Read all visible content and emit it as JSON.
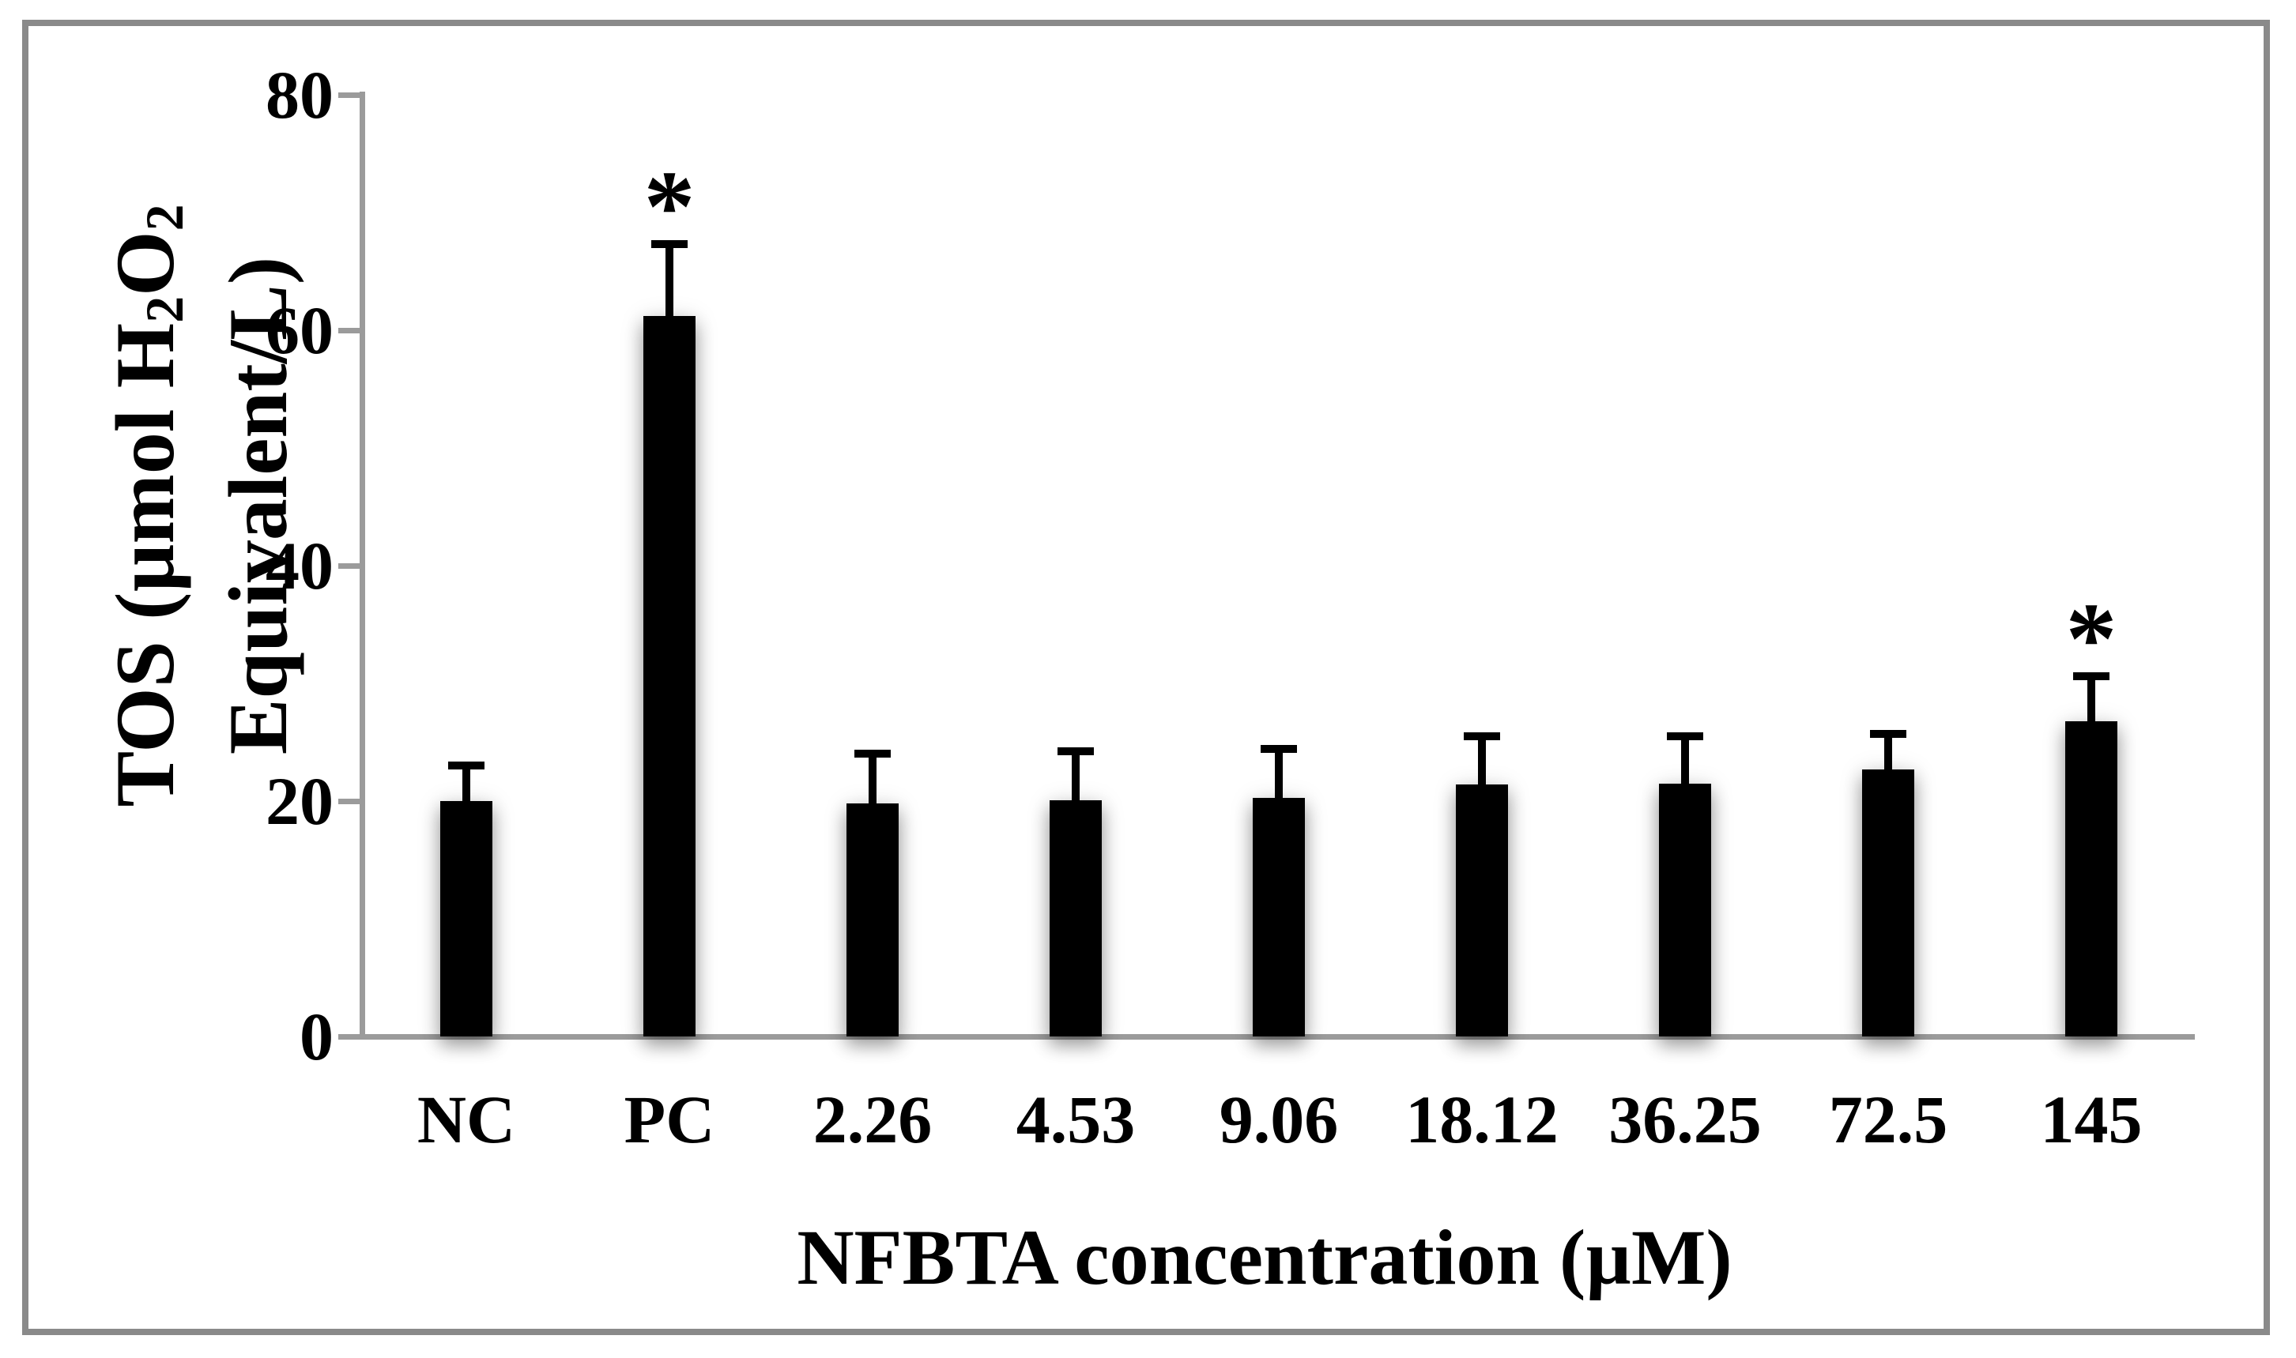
{
  "figure": {
    "background": "#ffffff",
    "frame_color": "#8a8a8a",
    "axis_color": "#9b9b9b"
  },
  "chart_data": {
    "type": "bar",
    "title": "",
    "xlabel": "NFBTA concentration (µM)",
    "ylabel": {
      "line1_seg1": "TOS (µmol H",
      "line1_sub1": "2",
      "line1_seg2": "O",
      "line1_sub2": "2",
      "line2": "Equivalent/L)"
    },
    "categories": [
      "NC",
      "PC",
      "2.26",
      "4.53",
      "9.06",
      "18.12",
      "36.25",
      "72.5",
      "145"
    ],
    "values": [
      20.0,
      61.2,
      19.8,
      20.1,
      20.3,
      21.4,
      21.5,
      22.7,
      26.8
    ],
    "errors_up": [
      3.0,
      6.1,
      4.2,
      4.1,
      4.1,
      4.1,
      4.0,
      3.0,
      3.8
    ],
    "significance": [
      "",
      "*",
      "",
      "",
      "",
      "",
      "",
      "",
      "*"
    ],
    "yticks": [
      0,
      20,
      40,
      60,
      80
    ],
    "ylim": [
      0,
      80
    ],
    "bar_color": "#000000",
    "error_bar_color": "#000000",
    "legend": "none",
    "grid": "off"
  }
}
